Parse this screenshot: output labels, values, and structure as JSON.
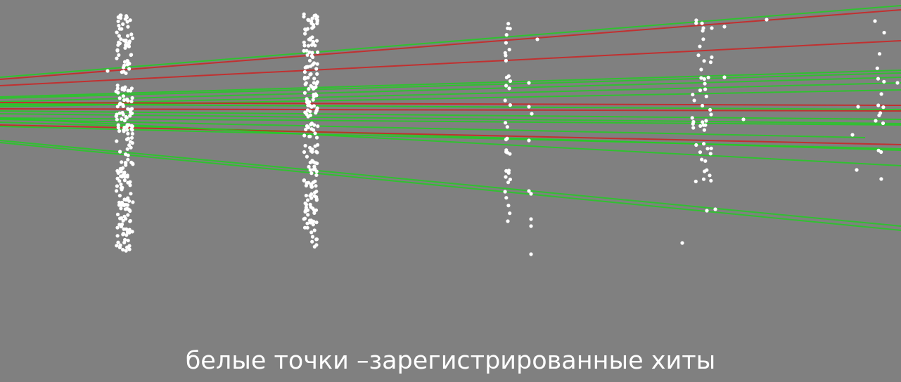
{
  "caption": "белые точки –зарегистрированные хиты",
  "colors": {
    "background": "#808080",
    "hit": "#ffffff",
    "track_found": "#22cc22",
    "track_missed": "#cc2222"
  }
}
